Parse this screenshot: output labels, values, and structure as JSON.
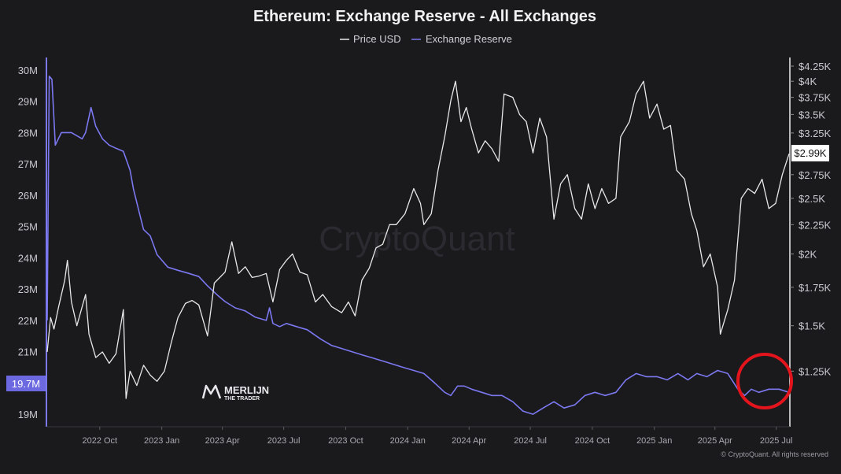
{
  "chart_data": {
    "type": "line",
    "title": "Ethereum: Exchange Reserve - All Exchanges",
    "legend": {
      "placement": "top-center",
      "entries": [
        "Price USD",
        "Exchange Reserve"
      ]
    },
    "colors": {
      "price": "#e8e8e8",
      "reserve": "#7b78f0",
      "highlight_circle": "#e3141c",
      "background": "#1a1a1d"
    },
    "x_ticks": [
      "2022 Oct",
      "2023 Jan",
      "2023 Apr",
      "2023 Jul",
      "2023 Oct",
      "2024 Jan",
      "2024 Apr",
      "2024 Jul",
      "2024 Oct",
      "2025 Jan",
      "2025 Apr",
      "2025 Jul"
    ],
    "x_range": [
      "2022-07-15",
      "2025-07-20"
    ],
    "y_left": {
      "scale": "linear",
      "ticks": [
        "30M",
        "29M",
        "28M",
        "27M",
        "26M",
        "25M",
        "24M",
        "23M",
        "22M",
        "21M",
        "19M"
      ],
      "tick_values": [
        30,
        29,
        28,
        27,
        26,
        25,
        24,
        23,
        22,
        21,
        19
      ],
      "unit": "M",
      "range": [
        18.6,
        30.4
      ],
      "current_value_label": "19.7M"
    },
    "y_right": {
      "scale": "log",
      "ticks": [
        "$4.25K",
        "$4K",
        "$3.75K",
        "$3.5K",
        "$3.25K",
        "$2.75K",
        "$2.5K",
        "$2.25K",
        "$2K",
        "$1.75K",
        "$1.5K",
        "$1.25K"
      ],
      "tick_values": [
        4250,
        4000,
        3750,
        3500,
        3250,
        2750,
        2500,
        2250,
        2000,
        1750,
        1500,
        1250
      ],
      "range": [
        1000,
        4400
      ],
      "current_value_label": "$2.99K"
    },
    "grid": false,
    "series": [
      {
        "name": "Exchange Reserve",
        "axis": "left",
        "unit": "M",
        "points": [
          [
            "2022-07-15",
            22.0
          ],
          [
            "2022-07-18",
            29.8
          ],
          [
            "2022-07-22",
            29.7
          ],
          [
            "2022-07-27",
            27.6
          ],
          [
            "2022-08-05",
            28.0
          ],
          [
            "2022-08-20",
            28.0
          ],
          [
            "2022-09-05",
            27.8
          ],
          [
            "2022-09-10",
            28.0
          ],
          [
            "2022-09-18",
            28.8
          ],
          [
            "2022-09-25",
            28.2
          ],
          [
            "2022-10-05",
            27.8
          ],
          [
            "2022-10-15",
            27.6
          ],
          [
            "2022-10-25",
            27.5
          ],
          [
            "2022-11-05",
            27.4
          ],
          [
            "2022-11-15",
            26.8
          ],
          [
            "2022-11-20",
            26.2
          ],
          [
            "2022-11-28",
            25.5
          ],
          [
            "2022-12-05",
            24.9
          ],
          [
            "2022-12-15",
            24.7
          ],
          [
            "2022-12-25",
            24.1
          ],
          [
            "2023-01-10",
            23.7
          ],
          [
            "2023-01-25",
            23.6
          ],
          [
            "2023-02-10",
            23.5
          ],
          [
            "2023-02-25",
            23.4
          ],
          [
            "2023-03-10",
            23.1
          ],
          [
            "2023-03-25",
            22.8
          ],
          [
            "2023-04-05",
            22.6
          ],
          [
            "2023-04-20",
            22.4
          ],
          [
            "2023-05-05",
            22.3
          ],
          [
            "2023-05-20",
            22.1
          ],
          [
            "2023-06-05",
            22.0
          ],
          [
            "2023-06-10",
            22.4
          ],
          [
            "2023-06-15",
            21.9
          ],
          [
            "2023-06-25",
            21.8
          ],
          [
            "2023-07-05",
            21.9
          ],
          [
            "2023-07-20",
            21.8
          ],
          [
            "2023-08-05",
            21.7
          ],
          [
            "2023-08-25",
            21.4
          ],
          [
            "2023-09-10",
            21.2
          ],
          [
            "2023-09-25",
            21.1
          ],
          [
            "2023-10-10",
            21.0
          ],
          [
            "2023-10-25",
            20.9
          ],
          [
            "2023-11-10",
            20.8
          ],
          [
            "2023-11-25",
            20.7
          ],
          [
            "2023-12-10",
            20.6
          ],
          [
            "2023-12-25",
            20.5
          ],
          [
            "2024-01-10",
            20.4
          ],
          [
            "2024-01-25",
            20.3
          ],
          [
            "2024-02-10",
            20.0
          ],
          [
            "2024-02-25",
            19.7
          ],
          [
            "2024-03-05",
            19.6
          ],
          [
            "2024-03-15",
            19.9
          ],
          [
            "2024-03-25",
            19.9
          ],
          [
            "2024-04-05",
            19.8
          ],
          [
            "2024-04-20",
            19.7
          ],
          [
            "2024-05-05",
            19.6
          ],
          [
            "2024-05-20",
            19.6
          ],
          [
            "2024-06-05",
            19.4
          ],
          [
            "2024-06-20",
            19.1
          ],
          [
            "2024-07-05",
            19.0
          ],
          [
            "2024-07-20",
            19.2
          ],
          [
            "2024-08-05",
            19.4
          ],
          [
            "2024-08-20",
            19.2
          ],
          [
            "2024-09-05",
            19.3
          ],
          [
            "2024-09-20",
            19.6
          ],
          [
            "2024-10-05",
            19.7
          ],
          [
            "2024-10-20",
            19.6
          ],
          [
            "2024-11-05",
            19.7
          ],
          [
            "2024-11-20",
            20.1
          ],
          [
            "2024-12-05",
            20.3
          ],
          [
            "2024-12-20",
            20.2
          ],
          [
            "2025-01-05",
            20.2
          ],
          [
            "2025-01-20",
            20.1
          ],
          [
            "2025-02-05",
            20.3
          ],
          [
            "2025-02-20",
            20.1
          ],
          [
            "2025-03-05",
            20.3
          ],
          [
            "2025-03-20",
            20.2
          ],
          [
            "2025-04-05",
            20.4
          ],
          [
            "2025-04-20",
            20.3
          ],
          [
            "2025-05-05",
            19.8
          ],
          [
            "2025-05-15",
            19.6
          ],
          [
            "2025-05-25",
            19.8
          ],
          [
            "2025-06-05",
            19.7
          ],
          [
            "2025-06-20",
            19.8
          ],
          [
            "2025-07-05",
            19.8
          ],
          [
            "2025-07-20",
            19.7
          ]
        ]
      },
      {
        "name": "Price USD",
        "axis": "right",
        "unit": "USD",
        "points": [
          [
            "2022-07-15",
            1350
          ],
          [
            "2022-07-20",
            1550
          ],
          [
            "2022-07-25",
            1480
          ],
          [
            "2022-08-01",
            1620
          ],
          [
            "2022-08-10",
            1800
          ],
          [
            "2022-08-14",
            1950
          ],
          [
            "2022-08-20",
            1650
          ],
          [
            "2022-08-28",
            1500
          ],
          [
            "2022-09-05",
            1620
          ],
          [
            "2022-09-10",
            1700
          ],
          [
            "2022-09-15",
            1450
          ],
          [
            "2022-09-25",
            1320
          ],
          [
            "2022-10-05",
            1350
          ],
          [
            "2022-10-15",
            1290
          ],
          [
            "2022-10-25",
            1340
          ],
          [
            "2022-11-05",
            1600
          ],
          [
            "2022-11-09",
            1120
          ],
          [
            "2022-11-15",
            1250
          ],
          [
            "2022-11-25",
            1180
          ],
          [
            "2022-12-05",
            1280
          ],
          [
            "2022-12-15",
            1230
          ],
          [
            "2022-12-25",
            1200
          ],
          [
            "2023-01-05",
            1250
          ],
          [
            "2023-01-15",
            1400
          ],
          [
            "2023-01-25",
            1550
          ],
          [
            "2023-02-05",
            1640
          ],
          [
            "2023-02-15",
            1660
          ],
          [
            "2023-02-25",
            1630
          ],
          [
            "2023-03-10",
            1440
          ],
          [
            "2023-03-20",
            1780
          ],
          [
            "2023-04-05",
            1860
          ],
          [
            "2023-04-15",
            2100
          ],
          [
            "2023-04-25",
            1850
          ],
          [
            "2023-05-05",
            1900
          ],
          [
            "2023-05-15",
            1820
          ],
          [
            "2023-05-25",
            1830
          ],
          [
            "2023-06-05",
            1850
          ],
          [
            "2023-06-15",
            1650
          ],
          [
            "2023-06-25",
            1880
          ],
          [
            "2023-07-05",
            1950
          ],
          [
            "2023-07-14",
            2000
          ],
          [
            "2023-07-25",
            1860
          ],
          [
            "2023-08-05",
            1840
          ],
          [
            "2023-08-17",
            1650
          ],
          [
            "2023-08-28",
            1700
          ],
          [
            "2023-09-10",
            1620
          ],
          [
            "2023-09-25",
            1580
          ],
          [
            "2023-10-05",
            1650
          ],
          [
            "2023-10-15",
            1560
          ],
          [
            "2023-10-25",
            1800
          ],
          [
            "2023-11-05",
            1890
          ],
          [
            "2023-11-15",
            2050
          ],
          [
            "2023-11-25",
            2080
          ],
          [
            "2023-12-05",
            2250
          ],
          [
            "2023-12-15",
            2250
          ],
          [
            "2023-12-28",
            2350
          ],
          [
            "2024-01-10",
            2600
          ],
          [
            "2024-01-20",
            2450
          ],
          [
            "2024-01-25",
            2250
          ],
          [
            "2024-02-05",
            2350
          ],
          [
            "2024-02-15",
            2800
          ],
          [
            "2024-02-25",
            3200
          ],
          [
            "2024-03-05",
            3700
          ],
          [
            "2024-03-12",
            4000
          ],
          [
            "2024-03-20",
            3400
          ],
          [
            "2024-03-28",
            3600
          ],
          [
            "2024-04-05",
            3300
          ],
          [
            "2024-04-15",
            3000
          ],
          [
            "2024-04-25",
            3150
          ],
          [
            "2024-05-05",
            3050
          ],
          [
            "2024-05-15",
            2900
          ],
          [
            "2024-05-23",
            3800
          ],
          [
            "2024-06-05",
            3750
          ],
          [
            "2024-06-15",
            3500
          ],
          [
            "2024-06-25",
            3400
          ],
          [
            "2024-07-05",
            3000
          ],
          [
            "2024-07-15",
            3450
          ],
          [
            "2024-07-25",
            3200
          ],
          [
            "2024-08-05",
            2300
          ],
          [
            "2024-08-15",
            2650
          ],
          [
            "2024-08-25",
            2750
          ],
          [
            "2024-09-05",
            2400
          ],
          [
            "2024-09-15",
            2300
          ],
          [
            "2024-09-25",
            2650
          ],
          [
            "2024-10-05",
            2400
          ],
          [
            "2024-10-15",
            2600
          ],
          [
            "2024-10-25",
            2450
          ],
          [
            "2024-11-05",
            2500
          ],
          [
            "2024-11-12",
            3200
          ],
          [
            "2024-11-25",
            3400
          ],
          [
            "2024-12-05",
            3800
          ],
          [
            "2024-12-16",
            4000
          ],
          [
            "2024-12-25",
            3450
          ],
          [
            "2025-01-05",
            3650
          ],
          [
            "2025-01-15",
            3300
          ],
          [
            "2025-01-25",
            3350
          ],
          [
            "2025-02-03",
            2800
          ],
          [
            "2025-02-15",
            2700
          ],
          [
            "2025-02-25",
            2350
          ],
          [
            "2025-03-05",
            2200
          ],
          [
            "2025-03-15",
            1900
          ],
          [
            "2025-03-25",
            2000
          ],
          [
            "2025-04-05",
            1750
          ],
          [
            "2025-04-09",
            1450
          ],
          [
            "2025-04-20",
            1600
          ],
          [
            "2025-04-30",
            1800
          ],
          [
            "2025-05-10",
            2500
          ],
          [
            "2025-05-20",
            2600
          ],
          [
            "2025-05-30",
            2550
          ],
          [
            "2025-06-10",
            2700
          ],
          [
            "2025-06-20",
            2400
          ],
          [
            "2025-06-30",
            2450
          ],
          [
            "2025-07-10",
            2750
          ],
          [
            "2025-07-20",
            2990
          ]
        ]
      }
    ]
  },
  "watermark": "CryptoQuant",
  "logo": {
    "line1": "MERLIJN",
    "line2": "THE TRADER"
  },
  "credit": "© CryptoQuant. All rights reserved"
}
